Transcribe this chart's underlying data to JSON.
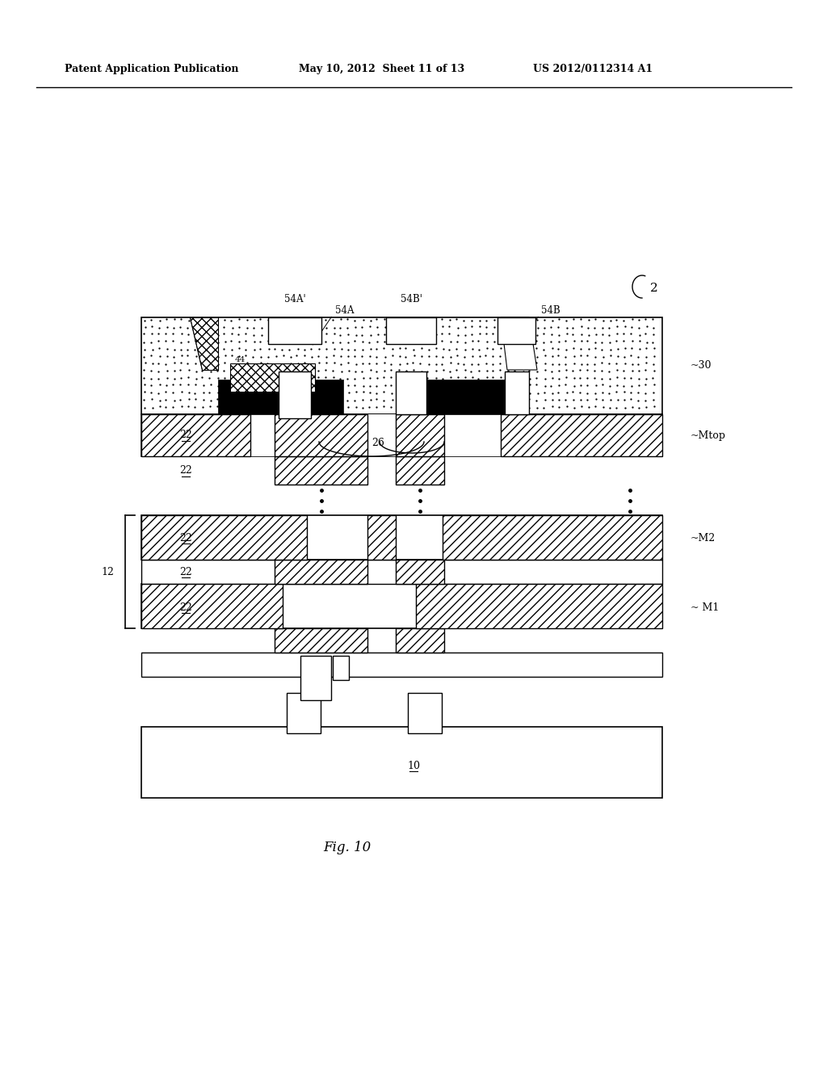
{
  "header_left": "Patent Application Publication",
  "header_mid": "May 10, 2012  Sheet 11 of 13",
  "header_right": "US 2012/0112314 A1",
  "fig_label": "Fig. 10",
  "bg_color": "#ffffff"
}
